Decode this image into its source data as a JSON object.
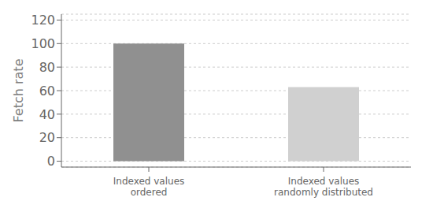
{
  "chart_data": {
    "type": "bar",
    "categories": [
      "Indexed values\nordered",
      "Indexed values\nrandomly distributed"
    ],
    "values": [
      100,
      63
    ],
    "colors": [
      "#909090",
      "#d0d0d0"
    ],
    "ylabel": "Fetch rate",
    "ylim": [
      -5,
      125
    ],
    "yticks": [
      0,
      20,
      40,
      60,
      80,
      100,
      120
    ],
    "grid": true
  }
}
